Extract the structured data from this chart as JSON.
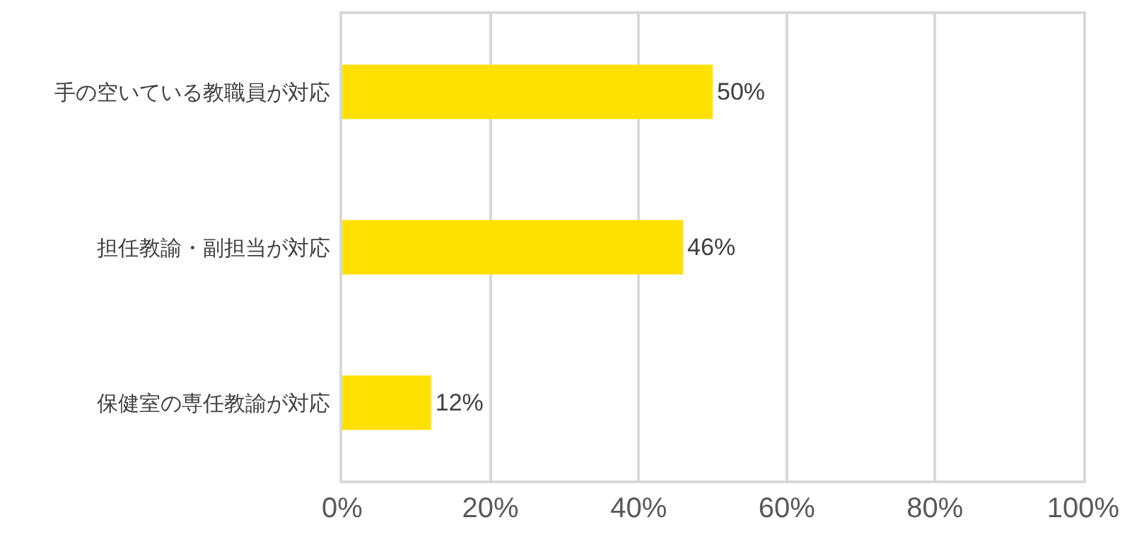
{
  "chart_data": {
    "type": "bar",
    "orientation": "horizontal",
    "categories": [
      "手の空いている教職員が対応",
      "担任教諭・副担当が対応",
      "保健室の専任教諭が対応"
    ],
    "values": [
      50,
      46,
      12
    ],
    "color": "#ffe000",
    "value_labels": [
      "50%",
      "46%",
      "12%"
    ],
    "xlim": [
      0,
      100
    ],
    "xticks": [
      {
        "value": 0,
        "label": "0%"
      },
      {
        "value": 20,
        "label": "20%"
      },
      {
        "value": 40,
        "label": "40%"
      },
      {
        "value": 60,
        "label": "60%"
      },
      {
        "value": 80,
        "label": "80%"
      },
      {
        "value": 100,
        "label": "100%"
      }
    ],
    "grid": "x",
    "legend": false
  }
}
